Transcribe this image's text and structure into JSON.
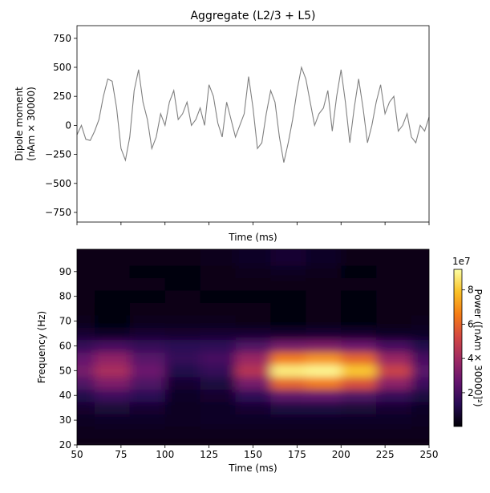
{
  "chart_data": [
    {
      "type": "line",
      "title": "Aggregate (L2/3 + L5)",
      "xlabel": "Time (ms)",
      "ylabel": [
        "Dipole moment",
        "(nAm × 30000)"
      ],
      "color": "#808080",
      "x": [
        50,
        52.5,
        55,
        57.5,
        60,
        62.5,
        65,
        67.5,
        70,
        72.5,
        75,
        77.5,
        80,
        82.5,
        85,
        87.5,
        90,
        92.5,
        95,
        97.5,
        100,
        102.5,
        105,
        107.5,
        110,
        112.5,
        115,
        117.5,
        120,
        122.5,
        125,
        127.5,
        130,
        132.5,
        135,
        137.5,
        140,
        142.5,
        145,
        147.5,
        150,
        152.5,
        155,
        157.5,
        160,
        162.5,
        165,
        167.5,
        170,
        172.5,
        175,
        177.5,
        180,
        182.5,
        185,
        187.5,
        190,
        192.5,
        195,
        197.5,
        200,
        202.5,
        205,
        207.5,
        210,
        212.5,
        215,
        217.5,
        220,
        222.5,
        225,
        227.5,
        230,
        232.5,
        235,
        237.5,
        240,
        242.5,
        245,
        247.5,
        250
      ],
      "values": [
        -80,
        0,
        -120,
        -130,
        -50,
        50,
        250,
        400,
        380,
        150,
        -200,
        -300,
        -100,
        300,
        480,
        200,
        50,
        -200,
        -100,
        100,
        0,
        200,
        300,
        50,
        100,
        200,
        0,
        50,
        150,
        0,
        350,
        250,
        20,
        -100,
        200,
        50,
        -100,
        0,
        100,
        420,
        150,
        -200,
        -150,
        100,
        300,
        200,
        -100,
        -320,
        -150,
        50,
        300,
        500,
        400,
        200,
        0,
        100,
        150,
        300,
        -50,
        250,
        480,
        200,
        -150,
        150,
        400,
        150,
        -150,
        0,
        200,
        350,
        100,
        200,
        250,
        -50,
        0,
        100,
        -100,
        -150,
        0,
        -50,
        70
      ],
      "xlim": [
        50,
        250
      ],
      "xticks": [
        50,
        75,
        100,
        125,
        150,
        175,
        200,
        225,
        250
      ],
      "ylim": [
        -833,
        859
      ],
      "yticks": [
        {
          "value": -750,
          "label": "−750"
        },
        {
          "value": -500,
          "label": "−500"
        },
        {
          "value": -250,
          "label": "−250"
        },
        0,
        250,
        500,
        750
      ]
    },
    {
      "type": "heatmap",
      "xlabel": "Time (ms)",
      "ylabel": "Frequency (Hz)",
      "colormap": "inferno",
      "x": [
        50,
        70,
        90,
        110,
        130,
        150,
        170,
        190,
        210,
        230,
        250
      ],
      "y": [
        20,
        25,
        30,
        35,
        40,
        45,
        50,
        55,
        60,
        65,
        70,
        75,
        80,
        85,
        90,
        95,
        100
      ],
      "values": [
        [
          0.3,
          0.3,
          0.3,
          0.3,
          0.3,
          0.3,
          0.3,
          0.3,
          0.3,
          0.3,
          0.3
        ],
        [
          0.4,
          0.4,
          0.4,
          0.4,
          0.4,
          0.4,
          0.4,
          0.4,
          0.4,
          0.4,
          0.4
        ],
        [
          0.5,
          0.6,
          0.6,
          0.5,
          0.6,
          0.6,
          0.6,
          0.6,
          0.6,
          0.6,
          0.5
        ],
        [
          0.7,
          0.9,
          0.8,
          0.5,
          0.6,
          0.8,
          1.0,
          1.0,
          0.9,
          0.8,
          0.6
        ],
        [
          1.2,
          1.8,
          1.4,
          0.6,
          0.7,
          1.5,
          2.5,
          2.6,
          2.2,
          1.6,
          1.0
        ],
        [
          2.2,
          3.2,
          2.2,
          0.8,
          1.0,
          3.0,
          6.0,
          6.5,
          5.5,
          3.5,
          1.8
        ],
        [
          3.0,
          4.2,
          2.8,
          1.2,
          1.6,
          4.5,
          8.8,
          9.0,
          8.0,
          5.0,
          2.4
        ],
        [
          2.6,
          3.6,
          2.4,
          1.6,
          2.0,
          3.8,
          6.5,
          7.0,
          6.0,
          3.8,
          2.0
        ],
        [
          1.6,
          2.0,
          1.6,
          1.4,
          1.5,
          2.2,
          3.0,
          3.2,
          2.8,
          2.0,
          1.2
        ],
        [
          0.8,
          0.6,
          0.8,
          0.7,
          0.8,
          0.8,
          0.7,
          0.8,
          0.7,
          0.6,
          0.6
        ],
        [
          0.4,
          0.1,
          0.4,
          0.4,
          0.4,
          0.3,
          0.1,
          0.3,
          0.1,
          0.3,
          0.4
        ],
        [
          0.3,
          0.1,
          0.3,
          0.3,
          0.3,
          0.3,
          0.1,
          0.3,
          0.1,
          0.3,
          0.3
        ],
        [
          0.3,
          0.2,
          0.2,
          0.3,
          0.2,
          0.2,
          0.2,
          0.3,
          0.2,
          0.3,
          0.3
        ],
        [
          0.3,
          0.3,
          0.3,
          0.2,
          0.3,
          0.3,
          0.3,
          0.3,
          0.3,
          0.3,
          0.3
        ],
        [
          0.3,
          0.3,
          0.2,
          0.2,
          0.3,
          0.4,
          0.5,
          0.4,
          0.2,
          0.3,
          0.3
        ],
        [
          0.3,
          0.3,
          0.3,
          0.3,
          0.4,
          0.6,
          0.8,
          0.6,
          0.3,
          0.3,
          0.3
        ],
        [
          0.3,
          0.3,
          0.3,
          0.3,
          0.4,
          0.6,
          0.8,
          0.6,
          0.3,
          0.3,
          0.3
        ]
      ],
      "xlim": [
        50,
        250
      ],
      "xticks": [
        50,
        75,
        100,
        125,
        150,
        175,
        200,
        225,
        250
      ],
      "ylim": [
        20,
        99
      ],
      "yticks": [
        20,
        30,
        40,
        50,
        60,
        70,
        80,
        90
      ],
      "colorbar": {
        "label": "Power ([nAm × 30000]²)",
        "offset_label": "1e7",
        "lim": [
          0.03,
          9.2
        ],
        "ticks": [
          2,
          4,
          6,
          8
        ]
      }
    }
  ]
}
